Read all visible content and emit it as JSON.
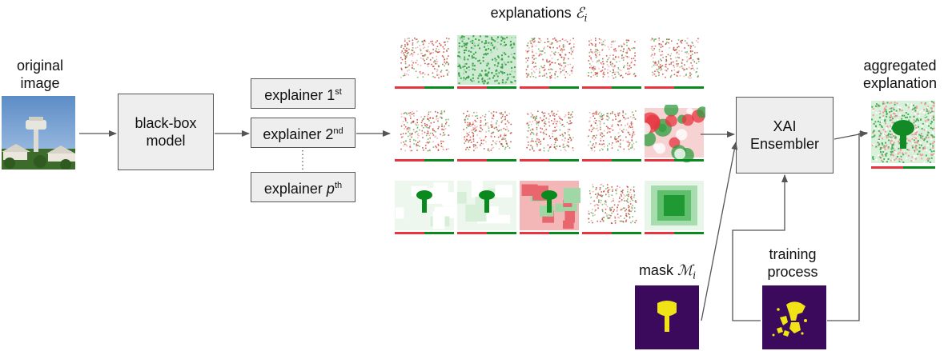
{
  "labels": {
    "original_image": [
      "original",
      "image"
    ],
    "explanations": "explanations",
    "explanations_symbol": "ℰ",
    "explanations_sub": "i",
    "aggregated": [
      "aggregated",
      "explanation"
    ],
    "mask": "mask",
    "mask_symbol": "ℳ",
    "mask_sub": "i",
    "training": [
      "training",
      "process"
    ]
  },
  "boxes": {
    "black_box": [
      "black-box",
      "model"
    ],
    "xai_ensembler": [
      "XAI",
      "Ensembler"
    ]
  },
  "explainers": [
    {
      "prefix": "explainer 1",
      "sup": "st"
    },
    {
      "prefix": "explainer 2",
      "sup": "nd"
    },
    {
      "prefix": "explainer ",
      "p": "p",
      "sup": "th"
    }
  ],
  "colors": {
    "box_fill": "#eeeeee",
    "green": "#0a8a1e",
    "red": "#e8343f",
    "mask_bg": "#3b0a5c",
    "mask_fg": "#f0e316",
    "sky": "#6f9ed0"
  }
}
